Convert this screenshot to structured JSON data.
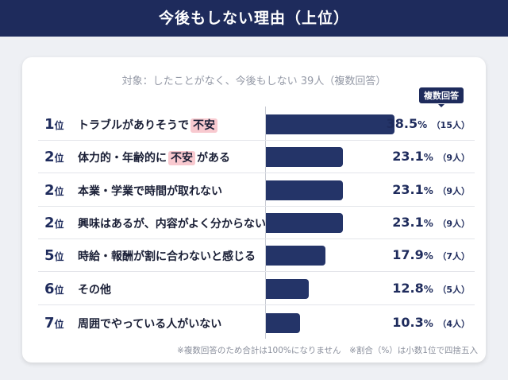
{
  "title": "今後もしない理由（上位）",
  "subtitle": "対象：したことがなく、今後もしない 39人（複数回答）",
  "badge": "複数回答",
  "footnote": "※複数回答のため合計は100%になりません　※割合（%）は小数1位で四捨五入",
  "colors": {
    "bar": "#243468",
    "header": "#1e2b5c",
    "highlight": "#f8c9cf"
  },
  "chart_data": {
    "type": "bar",
    "orientation": "horizontal",
    "rank_suffix": "位",
    "percent_suffix": "%",
    "categories": [
      {
        "rank": "1",
        "pre": "トラブルがありそうで",
        "hl": "不安",
        "post": "",
        "value": 38.5,
        "count": "（15人）"
      },
      {
        "rank": "2",
        "pre": "体力的・年齢的に",
        "hl": "不安",
        "post": "がある",
        "value": 23.1,
        "count": "（9人）"
      },
      {
        "rank": "2",
        "pre": "本業・学業で時間が取れない",
        "hl": "",
        "post": "",
        "value": 23.1,
        "count": "（9人）"
      },
      {
        "rank": "2",
        "pre": "興味はあるが、内容がよく分からない",
        "hl": "",
        "post": "",
        "value": 23.1,
        "count": "（9人）"
      },
      {
        "rank": "5",
        "pre": "時給・報酬が割に合わないと感じる",
        "hl": "",
        "post": "",
        "value": 17.9,
        "count": "（7人）"
      },
      {
        "rank": "6",
        "pre": "その他",
        "hl": "",
        "post": "",
        "value": 12.8,
        "count": "（5人）"
      },
      {
        "rank": "7",
        "pre": "周囲でやっている人がいない",
        "hl": "",
        "post": "",
        "value": 10.3,
        "count": "（4人）"
      }
    ]
  }
}
